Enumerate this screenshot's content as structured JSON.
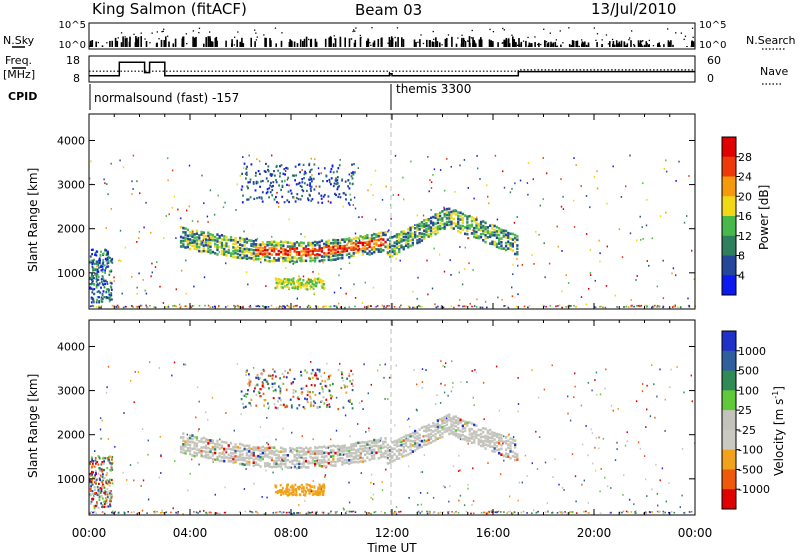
{
  "header": {
    "station": "King Salmon (fitACF)",
    "beam": "Beam 03",
    "date": "13/Jul/2010"
  },
  "left_labels": {
    "nsky": "N.Sky",
    "freq": "Freq.",
    "freq_unit": "[MHz]",
    "cpid": "CPID"
  },
  "right_labels": {
    "nsearch": "N.Search",
    "nave": "Nave"
  },
  "cpid_text": [
    "normalsound (fast) -157",
    "themis 3300"
  ],
  "chart_data": [
    {
      "type": "line",
      "name": "noise",
      "y_ticks_left": [
        "10^5",
        "10^0"
      ],
      "y_ticks_right": [
        "10^5",
        "10^0"
      ]
    },
    {
      "type": "line",
      "name": "frequency-nave",
      "y_ticks_left": [
        "18",
        "8"
      ],
      "y_ticks_right": [
        "60",
        "0"
      ],
      "freq_steps": [
        [
          0,
          11
        ],
        [
          1.2,
          11
        ],
        [
          1.2,
          17.5
        ],
        [
          2.2,
          17.5
        ],
        [
          2.2,
          12.5
        ],
        [
          2.4,
          12.5
        ],
        [
          2.4,
          17.5
        ],
        [
          3.0,
          17.5
        ],
        [
          3.0,
          11
        ],
        [
          11.9,
          11
        ],
        [
          11.9,
          12
        ],
        [
          12.0,
          12
        ],
        [
          12.0,
          11
        ],
        [
          17.0,
          11
        ],
        [
          17.0,
          13
        ],
        [
          24,
          13
        ]
      ],
      "nave_steps": [
        [
          0,
          25
        ],
        [
          11.9,
          25
        ],
        [
          11.9,
          15
        ],
        [
          12.0,
          15
        ],
        [
          12.0,
          25
        ],
        [
          17.0,
          25
        ],
        [
          17.0,
          28
        ],
        [
          24,
          28
        ]
      ]
    },
    {
      "type": "heatmap",
      "name": "power",
      "ylabel": "Slant Range [km]",
      "yticks": [
        1000,
        2000,
        3000,
        4000
      ],
      "ylim": [
        180,
        4600
      ],
      "xlim": [
        0,
        24
      ],
      "colorbar_label": "Power [dB]",
      "colorbar_ticks": [
        "4",
        "8",
        "12",
        "16",
        "20",
        "24",
        "28"
      ],
      "colors": [
        "#0b1bf0",
        "#24479b",
        "#2e7f5e",
        "#48b84b",
        "#f0d814",
        "#f59a0a",
        "#ee3a0a",
        "#e10000"
      ]
    },
    {
      "type": "heatmap",
      "name": "velocity",
      "ylabel": "Slant Range [km]",
      "yticks": [
        1000,
        2000,
        3000,
        4000
      ],
      "ylim": [
        180,
        4600
      ],
      "xlim": [
        0,
        24
      ],
      "xticks": [
        "00:00",
        "04:00",
        "08:00",
        "12:00",
        "16:00",
        "20:00",
        "00:00"
      ],
      "xlabel": "Time UT",
      "colorbar_label": "Velocity [m s",
      "colorbar_label_sup": "-1",
      "colorbar_label_end": "]",
      "colorbar_ticks": [
        "1000",
        "500",
        "100",
        "25",
        "-25",
        "-100",
        "-500",
        "-1000"
      ],
      "colors": [
        "#1f31c8",
        "#2f5f9e",
        "#2f8a55",
        "#5fc93a",
        "#c3c3bc",
        "#c9c9c1",
        "#f0a21a",
        "#ee5a0a",
        "#e00000"
      ]
    }
  ]
}
